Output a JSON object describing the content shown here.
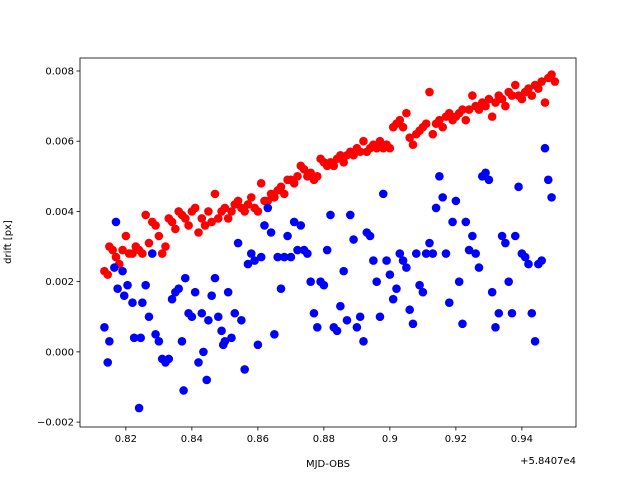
{
  "chart_data": {
    "type": "scatter",
    "xlabel": "MJD-OBS",
    "ylabel": "drift [px]",
    "x_offset_label": "+5.8407e4",
    "xlim": [
      0.8061,
      0.9564
    ],
    "ylim": [
      -0.00214,
      0.00837
    ],
    "xticks": [
      0.82,
      0.84,
      0.86,
      0.88,
      0.9,
      0.92,
      0.94
    ],
    "yticks": [
      {
        "value": -0.002,
        "label": "−0.002"
      },
      {
        "value": 0,
        "label": "0.000"
      },
      {
        "value": 0.002,
        "label": "0.002"
      },
      {
        "value": 0.004,
        "label": "0.004"
      },
      {
        "value": 0.006,
        "label": "0.006"
      },
      {
        "value": 0.008,
        "label": "0.008"
      }
    ],
    "series": [
      {
        "color": "#ff0000",
        "x": [
          0.8135,
          0.8145,
          0.815,
          0.816,
          0.817,
          0.818,
          0.819,
          0.82,
          0.821,
          0.822,
          0.823,
          0.824,
          0.825,
          0.826,
          0.827,
          0.828,
          0.829,
          0.83,
          0.831,
          0.832,
          0.833,
          0.834,
          0.835,
          0.836,
          0.837,
          0.838,
          0.839,
          0.84,
          0.841,
          0.842,
          0.843,
          0.844,
          0.845,
          0.846,
          0.847,
          0.848,
          0.849,
          0.85,
          0.851,
          0.852,
          0.853,
          0.854,
          0.855,
          0.856,
          0.857,
          0.858,
          0.859,
          0.86,
          0.861,
          0.862,
          0.863,
          0.864,
          0.865,
          0.866,
          0.867,
          0.868,
          0.869,
          0.87,
          0.871,
          0.872,
          0.873,
          0.874,
          0.875,
          0.876,
          0.877,
          0.878,
          0.879,
          0.88,
          0.881,
          0.882,
          0.883,
          0.884,
          0.885,
          0.886,
          0.887,
          0.888,
          0.889,
          0.89,
          0.891,
          0.892,
          0.893,
          0.894,
          0.895,
          0.896,
          0.897,
          0.898,
          0.899,
          0.9,
          0.901,
          0.902,
          0.903,
          0.904,
          0.905,
          0.906,
          0.907,
          0.908,
          0.909,
          0.91,
          0.911,
          0.912,
          0.913,
          0.914,
          0.915,
          0.916,
          0.917,
          0.918,
          0.919,
          0.92,
          0.921,
          0.922,
          0.923,
          0.924,
          0.925,
          0.926,
          0.927,
          0.928,
          0.929,
          0.93,
          0.931,
          0.932,
          0.933,
          0.934,
          0.935,
          0.936,
          0.937,
          0.938,
          0.939,
          0.94,
          0.941,
          0.942,
          0.943,
          0.944,
          0.945,
          0.946,
          0.947,
          0.948,
          0.949,
          0.95
        ],
        "values": [
          0.0023,
          0.0022,
          0.003,
          0.0029,
          0.0027,
          0.0025,
          0.0029,
          0.0033,
          0.0028,
          0.0028,
          0.003,
          0.0029,
          0.0028,
          0.0039,
          0.0031,
          0.0037,
          0.0036,
          0.0033,
          0.0028,
          0.003,
          0.0038,
          0.0037,
          0.0035,
          0.004,
          0.0039,
          0.0038,
          0.0036,
          0.004,
          0.0041,
          0.0034,
          0.0038,
          0.0036,
          0.004,
          0.0037,
          0.0045,
          0.0038,
          0.004,
          0.0041,
          0.0038,
          0.004,
          0.0042,
          0.0043,
          0.0041,
          0.004,
          0.0042,
          0.0044,
          0.0041,
          0.004,
          0.0048,
          0.0043,
          0.0043,
          0.0045,
          0.0044,
          0.0046,
          0.0047,
          0.0045,
          0.0049,
          0.0049,
          0.0048,
          0.005,
          0.0053,
          0.0052,
          0.005,
          0.0051,
          0.0049,
          0.005,
          0.0055,
          0.0054,
          0.0053,
          0.0054,
          0.0053,
          0.0055,
          0.0056,
          0.0054,
          0.0056,
          0.0057,
          0.0056,
          0.0058,
          0.0057,
          0.006,
          0.0057,
          0.0058,
          0.0059,
          0.0058,
          0.006,
          0.0058,
          0.0059,
          0.0058,
          0.0064,
          0.0065,
          0.0066,
          0.0064,
          0.0068,
          0.0061,
          0.0059,
          0.0062,
          0.0063,
          0.0064,
          0.0065,
          0.0074,
          0.0062,
          0.0065,
          0.0066,
          0.0064,
          0.0067,
          0.0068,
          0.0066,
          0.0067,
          0.0068,
          0.0069,
          0.0066,
          0.0069,
          0.0073,
          0.007,
          0.0069,
          0.0071,
          0.007,
          0.0072,
          0.0067,
          0.0071,
          0.0073,
          0.0072,
          0.007,
          0.0074,
          0.0073,
          0.0076,
          0.0073,
          0.0072,
          0.0074,
          0.0075,
          0.0073,
          0.0076,
          0.0075,
          0.0077,
          0.0071,
          0.0078,
          0.0079,
          0.0077
        ]
      },
      {
        "color": "#0000ff",
        "x": [
          0.8135,
          0.8145,
          0.815,
          0.8165,
          0.817,
          0.8175,
          0.819,
          0.8195,
          0.8205,
          0.822,
          0.8225,
          0.824,
          0.8245,
          0.825,
          0.826,
          0.827,
          0.828,
          0.829,
          0.83,
          0.831,
          0.832,
          0.833,
          0.834,
          0.835,
          0.836,
          0.837,
          0.8375,
          0.838,
          0.839,
          0.84,
          0.841,
          0.842,
          0.843,
          0.8435,
          0.8445,
          0.845,
          0.846,
          0.847,
          0.848,
          0.849,
          0.8495,
          0.85,
          0.851,
          0.852,
          0.853,
          0.854,
          0.855,
          0.856,
          0.857,
          0.858,
          0.859,
          0.86,
          0.861,
          0.862,
          0.863,
          0.864,
          0.865,
          0.866,
          0.867,
          0.868,
          0.869,
          0.87,
          0.871,
          0.872,
          0.873,
          0.874,
          0.875,
          0.876,
          0.877,
          0.878,
          0.879,
          0.88,
          0.881,
          0.882,
          0.883,
          0.884,
          0.885,
          0.886,
          0.887,
          0.888,
          0.889,
          0.89,
          0.891,
          0.892,
          0.893,
          0.894,
          0.895,
          0.896,
          0.897,
          0.898,
          0.899,
          0.9,
          0.901,
          0.902,
          0.903,
          0.904,
          0.905,
          0.906,
          0.907,
          0.908,
          0.909,
          0.91,
          0.911,
          0.912,
          0.913,
          0.914,
          0.915,
          0.916,
          0.917,
          0.918,
          0.919,
          0.92,
          0.921,
          0.922,
          0.923,
          0.924,
          0.925,
          0.926,
          0.927,
          0.928,
          0.929,
          0.93,
          0.931,
          0.932,
          0.933,
          0.934,
          0.935,
          0.936,
          0.937,
          0.938,
          0.939,
          0.94,
          0.941,
          0.942,
          0.943,
          0.944,
          0.945,
          0.946,
          0.947,
          0.948,
          0.949
        ],
        "values": [
          0.0007,
          -0.0003,
          0.0003,
          0.0024,
          0.0037,
          0.0018,
          0.0023,
          0.0016,
          0.0019,
          0.0014,
          0.0004,
          -0.0016,
          0.0004,
          0.0014,
          0.0019,
          0.001,
          0.0028,
          0.0005,
          0.0003,
          -0.0002,
          -0.0003,
          -0.0002,
          0.0015,
          0.0017,
          0.0018,
          0.0003,
          -0.0011,
          0.0021,
          0.0011,
          0.001,
          0.0017,
          -0.0003,
          0.0011,
          0.0,
          -0.0008,
          0.0009,
          0.0016,
          0.0021,
          0.001,
          0.0006,
          0.0002,
          0.0003,
          0.0017,
          0.0004,
          0.0011,
          0.0031,
          0.0009,
          -0.0005,
          0.0025,
          0.0028,
          0.0026,
          0.0002,
          0.0027,
          0.0036,
          0.0041,
          0.0034,
          0.0005,
          0.0027,
          0.0018,
          0.0027,
          0.0033,
          0.0027,
          0.0037,
          0.0029,
          0.0036,
          0.0029,
          0.0028,
          0.002,
          0.0011,
          0.0007,
          0.002,
          0.0019,
          0.0029,
          0.0039,
          0.0007,
          0.0006,
          0.0013,
          0.0023,
          0.0009,
          0.0039,
          0.0032,
          0.0007,
          0.001,
          0.0003,
          0.0034,
          0.0033,
          0.0026,
          0.002,
          0.001,
          0.0045,
          0.0026,
          0.0022,
          0.0015,
          0.0018,
          0.0028,
          0.0026,
          0.0024,
          0.0012,
          0.0008,
          0.0028,
          0.0019,
          0.0017,
          0.0028,
          0.0031,
          0.0028,
          0.0041,
          0.005,
          0.0044,
          0.0028,
          0.0014,
          0.0037,
          0.0043,
          0.002,
          0.0008,
          0.0037,
          0.0029,
          0.0033,
          0.0028,
          0.0024,
          0.005,
          0.0051,
          0.0049,
          0.0017,
          0.0007,
          0.0011,
          0.0033,
          0.0031,
          0.002,
          0.0011,
          0.0033,
          0.0047,
          0.0028,
          0.0027,
          0.0025,
          0.0011,
          0.0003,
          0.0025,
          0.0026,
          0.0058,
          0.0049,
          0.0044
        ]
      }
    ]
  }
}
